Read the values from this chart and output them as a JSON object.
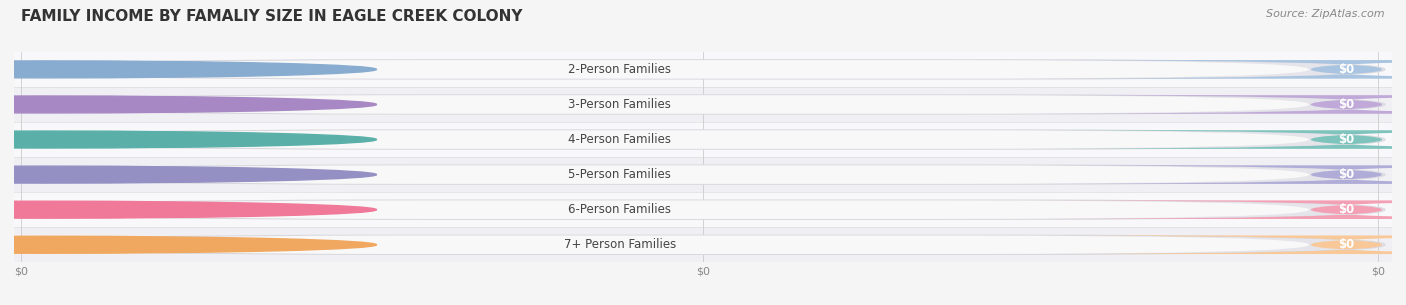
{
  "title": "Family Income by Famaliy Size in Eagle Creek Colony",
  "title_display": "FAMILY INCOME BY FAMALIY SIZE IN EAGLE CREEK COLONY",
  "source_text": "Source: ZipAtlas.com",
  "categories": [
    "2-Person Families",
    "3-Person Families",
    "4-Person Families",
    "5-Person Families",
    "6-Person Families",
    "7+ Person Families"
  ],
  "values": [
    0,
    0,
    0,
    0,
    0,
    0
  ],
  "bar_colors": [
    "#a8c4e0",
    "#c0a8d8",
    "#7ec4bc",
    "#b0acd8",
    "#f4a0b4",
    "#f8c898"
  ],
  "dot_colors": [
    "#88acd0",
    "#a888c4",
    "#5ab0a8",
    "#9490c4",
    "#f07898",
    "#f0a860"
  ],
  "value_labels": [
    "$0",
    "$0",
    "$0",
    "$0",
    "$0",
    "$0"
  ],
  "x_tick_labels": [
    "$0",
    "$0",
    "$0"
  ],
  "background_color": "#f5f5f5",
  "outer_bar_color": "#e4e4ea",
  "inner_bar_color": "#f8f8f8",
  "title_fontsize": 11,
  "label_fontsize": 8.5,
  "value_fontsize": 8.5,
  "source_fontsize": 8,
  "figsize": [
    14.06,
    3.05
  ],
  "dpi": 100
}
